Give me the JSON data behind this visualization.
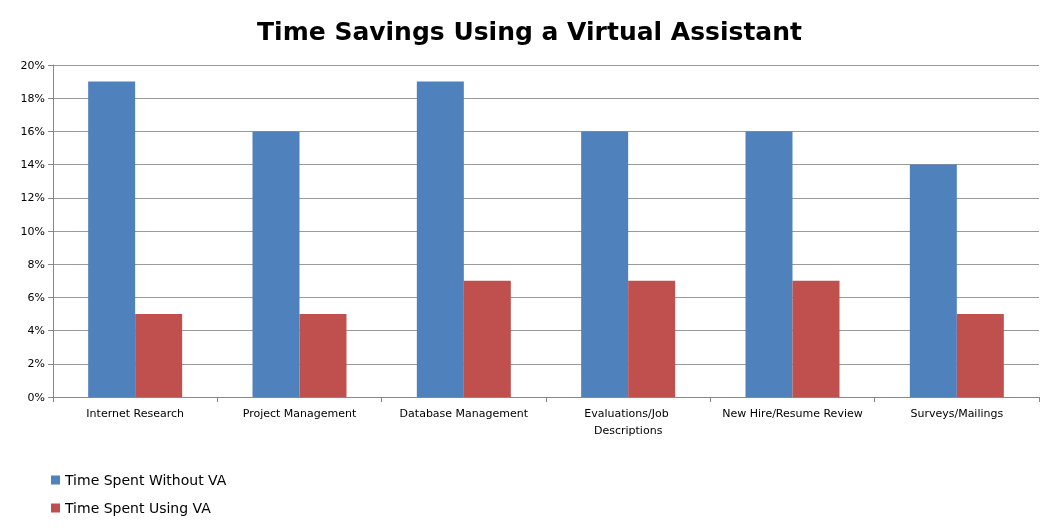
{
  "chart_data": {
    "type": "bar",
    "title": "Time Savings Using a Virtual Assistant",
    "categories": [
      "Internet Research",
      "Project Management",
      "Database Management",
      "Evaluations/Job Descriptions",
      "New Hire/Resume Review",
      "Surveys/Mailings"
    ],
    "series": [
      {
        "name": "Time Spent Without VA",
        "color": "#4f81bd",
        "values": [
          19,
          16,
          19,
          16,
          16,
          14
        ]
      },
      {
        "name": "Time Spent Using VA",
        "color": "#c0504d",
        "values": [
          5,
          5,
          7,
          7,
          7,
          5
        ]
      }
    ],
    "ylim": [
      0,
      20
    ],
    "yticks": [
      {
        "value": 0,
        "label": "0%"
      },
      {
        "value": 2,
        "label": "2%"
      },
      {
        "value": 4,
        "label": "4%"
      },
      {
        "value": 6,
        "label": "6%"
      },
      {
        "value": 8,
        "label": "8%"
      },
      {
        "value": 10,
        "label": "10%"
      },
      {
        "value": 12,
        "label": "12%"
      },
      {
        "value": 14,
        "label": "14%"
      },
      {
        "value": 16,
        "label": "16%"
      },
      {
        "value": 18,
        "label": "18%"
      },
      {
        "value": 20,
        "label": "20%"
      }
    ],
    "grid": "y",
    "legend": "bottom left"
  }
}
